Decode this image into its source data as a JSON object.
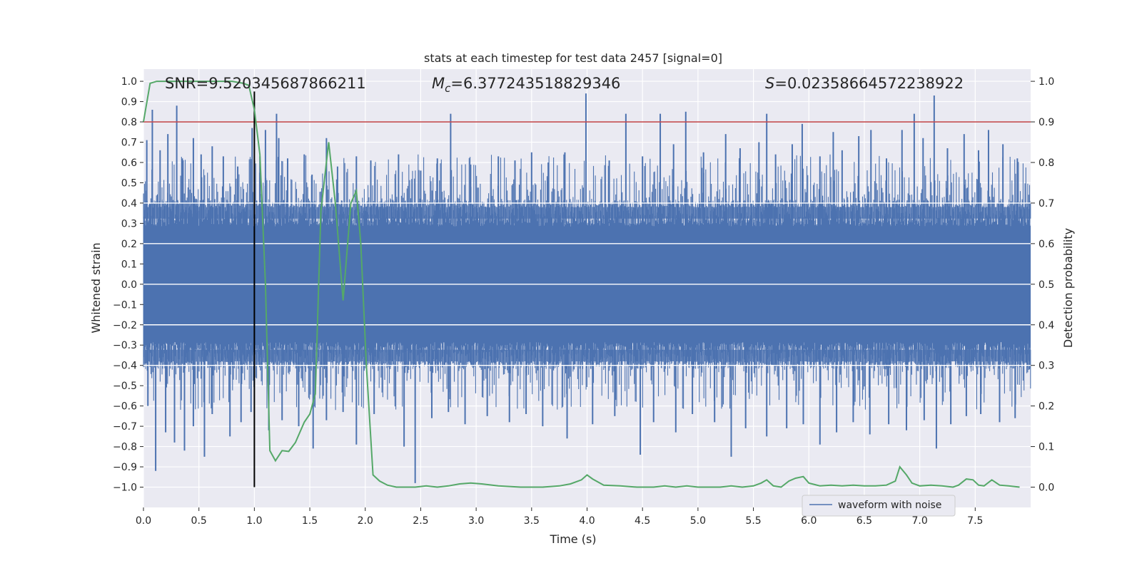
{
  "chart_data": {
    "type": "line",
    "title": "stats at each timestep for test data 2457 [signal=0]",
    "xlabel": "Time (s)",
    "ylabel": "Whitened strain",
    "y2label": "Detection probability",
    "xlim": [
      0.0,
      8.0
    ],
    "ylim": [
      -1.1,
      1.06
    ],
    "y2lim": [
      -0.05,
      1.03
    ],
    "xticks": [
      "0.0",
      "0.5",
      "1.0",
      "1.5",
      "2.0",
      "2.5",
      "3.0",
      "3.5",
      "4.0",
      "4.5",
      "5.0",
      "5.5",
      "6.0",
      "6.5",
      "7.0",
      "7.5"
    ],
    "yticks": [
      "1.0",
      "0.9",
      "0.8",
      "0.7",
      "0.6",
      "0.5",
      "0.4",
      "0.3",
      "0.2",
      "0.1",
      "0.0",
      "−0.1",
      "−0.2",
      "−0.3",
      "−0.4",
      "−0.5",
      "−0.6",
      "−0.7",
      "−0.8",
      "−0.9",
      "−1.0"
    ],
    "y2ticks": [
      "1.0",
      "0.9",
      "0.8",
      "0.7",
      "0.6",
      "0.5",
      "0.4",
      "0.3",
      "0.2",
      "0.1",
      "0.0"
    ],
    "annotations": {
      "snr": "SNR=9.520345687866211",
      "mc_symbol": "M",
      "mc_sub": "c",
      "mc_value": "=6.377243518829346",
      "s_symbol": "S",
      "s_value": "=0.023586645722389​22"
    },
    "legend": {
      "label": "waveform with noise",
      "position": "lower-right"
    },
    "threshold_line": {
      "y2": 0.9,
      "color": "#c44e52"
    },
    "vertical_marker": {
      "x": 1.0,
      "y_range": [
        -1.0,
        0.95
      ],
      "color": "#000000"
    },
    "waveform": {
      "name": "waveform with noise",
      "color": "#4c72b0",
      "core_amplitude": 0.38,
      "time_range": [
        0.0,
        8.0
      ],
      "spikes_up": [
        [
          0.03,
          0.71
        ],
        [
          0.08,
          0.86
        ],
        [
          0.15,
          0.66
        ],
        [
          0.22,
          0.74
        ],
        [
          0.3,
          0.88
        ],
        [
          0.35,
          0.62
        ],
        [
          0.45,
          0.72
        ],
        [
          0.52,
          0.64
        ],
        [
          0.62,
          0.68
        ],
        [
          0.72,
          0.63
        ],
        [
          0.85,
          0.58
        ],
        [
          0.98,
          0.77
        ],
        [
          1.05,
          0.63
        ],
        [
          1.1,
          0.76
        ],
        [
          1.2,
          0.84
        ],
        [
          1.22,
          0.72
        ],
        [
          1.3,
          0.62
        ],
        [
          1.45,
          0.64
        ],
        [
          1.52,
          0.54
        ],
        [
          1.65,
          0.72
        ],
        [
          1.75,
          0.58
        ],
        [
          1.92,
          0.63
        ],
        [
          2.05,
          0.61
        ],
        [
          2.3,
          0.64
        ],
        [
          2.5,
          0.56
        ],
        [
          2.65,
          0.62
        ],
        [
          2.77,
          0.84
        ],
        [
          2.95,
          0.59
        ],
        [
          3.2,
          0.63
        ],
        [
          3.35,
          0.61
        ],
        [
          3.5,
          0.65
        ],
        [
          3.65,
          0.6
        ],
        [
          3.8,
          0.65
        ],
        [
          3.99,
          0.94
        ],
        [
          4.2,
          0.61
        ],
        [
          4.35,
          0.84
        ],
        [
          4.5,
          0.63
        ],
        [
          4.66,
          0.84
        ],
        [
          4.78,
          0.69
        ],
        [
          4.89,
          0.85
        ],
        [
          5.05,
          0.65
        ],
        [
          5.25,
          0.74
        ],
        [
          5.38,
          0.67
        ],
        [
          5.55,
          0.7
        ],
        [
          5.62,
          0.84
        ],
        [
          5.7,
          0.64
        ],
        [
          5.85,
          0.69
        ],
        [
          5.94,
          0.79
        ],
        [
          6.1,
          0.63
        ],
        [
          6.22,
          0.75
        ],
        [
          6.3,
          0.66
        ],
        [
          6.45,
          0.73
        ],
        [
          6.56,
          0.76
        ],
        [
          6.7,
          0.62
        ],
        [
          6.84,
          0.76
        ],
        [
          6.95,
          0.84
        ],
        [
          7.03,
          0.72
        ],
        [
          7.13,
          0.93
        ],
        [
          7.25,
          0.67
        ],
        [
          7.4,
          0.74
        ],
        [
          7.53,
          0.66
        ],
        [
          7.62,
          0.76
        ],
        [
          7.75,
          0.69
        ],
        [
          7.88,
          0.62
        ]
      ],
      "spikes_down": [
        [
          0.04,
          -0.6
        ],
        [
          0.11,
          -0.92
        ],
        [
          0.2,
          -0.73
        ],
        [
          0.28,
          -0.78
        ],
        [
          0.37,
          -0.82
        ],
        [
          0.45,
          -0.7
        ],
        [
          0.55,
          -0.85
        ],
        [
          0.62,
          -0.64
        ],
        [
          0.78,
          -0.75
        ],
        [
          0.88,
          -0.68
        ],
        [
          0.97,
          -0.63
        ],
        [
          1.13,
          -0.72
        ],
        [
          1.25,
          -0.67
        ],
        [
          1.4,
          -0.7
        ],
        [
          1.53,
          -0.81
        ],
        [
          1.65,
          -0.67
        ],
        [
          1.8,
          -0.63
        ],
        [
          1.92,
          -0.79
        ],
        [
          2.08,
          -0.64
        ],
        [
          2.35,
          -0.8
        ],
        [
          2.45,
          -0.98
        ],
        [
          2.6,
          -0.66
        ],
        [
          2.75,
          -0.63
        ],
        [
          2.9,
          -0.69
        ],
        [
          3.1,
          -0.65
        ],
        [
          3.3,
          -0.68
        ],
        [
          3.45,
          -0.64
        ],
        [
          3.6,
          -0.7
        ],
        [
          3.82,
          -0.76
        ],
        [
          4.05,
          -0.69
        ],
        [
          4.25,
          -0.65
        ],
        [
          4.48,
          -0.84
        ],
        [
          4.6,
          -0.68
        ],
        [
          4.8,
          -0.73
        ],
        [
          4.95,
          -0.64
        ],
        [
          5.15,
          -0.68
        ],
        [
          5.3,
          -0.85
        ],
        [
          5.43,
          -0.71
        ],
        [
          5.62,
          -0.75
        ],
        [
          5.8,
          -0.71
        ],
        [
          5.95,
          -0.69
        ],
        [
          6.1,
          -0.79
        ],
        [
          6.25,
          -0.73
        ],
        [
          6.4,
          -0.68
        ],
        [
          6.55,
          -0.74
        ],
        [
          6.72,
          -0.69
        ],
        [
          6.88,
          -0.72
        ],
        [
          7.04,
          -0.67
        ],
        [
          7.15,
          -0.81
        ],
        [
          7.28,
          -0.69
        ],
        [
          7.42,
          -0.65
        ],
        [
          7.55,
          -0.64
        ],
        [
          7.72,
          -0.68
        ],
        [
          7.86,
          -0.66
        ]
      ]
    },
    "probability": {
      "name": "detection probability",
      "color": "#55a868",
      "x": [
        0.0,
        0.06,
        0.12,
        0.2,
        0.3,
        0.4,
        0.5,
        0.6,
        0.7,
        0.8,
        0.9,
        0.95,
        1.0,
        1.05,
        1.1,
        1.14,
        1.19,
        1.25,
        1.31,
        1.37,
        1.45,
        1.5,
        1.55,
        1.6,
        1.67,
        1.73,
        1.8,
        1.87,
        1.92,
        1.96,
        2.01,
        2.07,
        2.13,
        2.2,
        2.28,
        2.35,
        2.45,
        2.55,
        2.65,
        2.75,
        2.85,
        2.95,
        3.05,
        3.2,
        3.4,
        3.6,
        3.75,
        3.85,
        3.95,
        4.0,
        4.05,
        4.15,
        4.3,
        4.45,
        4.6,
        4.7,
        4.8,
        4.9,
        5.0,
        5.1,
        5.2,
        5.3,
        5.4,
        5.5,
        5.57,
        5.62,
        5.68,
        5.75,
        5.82,
        5.88,
        5.95,
        6.0,
        6.1,
        6.2,
        6.3,
        6.4,
        6.5,
        6.6,
        6.7,
        6.78,
        6.82,
        6.88,
        6.93,
        7.0,
        7.1,
        7.2,
        7.3,
        7.35,
        7.42,
        7.48,
        7.53,
        7.58,
        7.65,
        7.72,
        7.8,
        7.9
      ],
      "y": [
        0.9,
        0.995,
        1.0,
        1.0,
        1.0,
        1.0,
        1.0,
        1.0,
        1.0,
        1.0,
        0.995,
        0.99,
        0.93,
        0.82,
        0.5,
        0.09,
        0.065,
        0.09,
        0.088,
        0.11,
        0.16,
        0.18,
        0.23,
        0.68,
        0.85,
        0.7,
        0.46,
        0.7,
        0.73,
        0.6,
        0.3,
        0.03,
        0.015,
        0.005,
        0.0,
        0.0,
        0.0,
        0.003,
        0.0,
        0.003,
        0.008,
        0.01,
        0.008,
        0.003,
        0.0,
        0.0,
        0.003,
        0.008,
        0.018,
        0.03,
        0.02,
        0.005,
        0.003,
        0.0,
        0.0,
        0.003,
        0.0,
        0.003,
        0.0,
        0.0,
        0.0,
        0.003,
        0.0,
        0.003,
        0.01,
        0.018,
        0.003,
        0.0,
        0.015,
        0.022,
        0.026,
        0.01,
        0.003,
        0.005,
        0.003,
        0.005,
        0.003,
        0.003,
        0.005,
        0.015,
        0.05,
        0.03,
        0.01,
        0.003,
        0.005,
        0.003,
        0.0,
        0.005,
        0.02,
        0.018,
        0.005,
        0.003,
        0.018,
        0.005,
        0.003,
        0.0
      ]
    }
  }
}
